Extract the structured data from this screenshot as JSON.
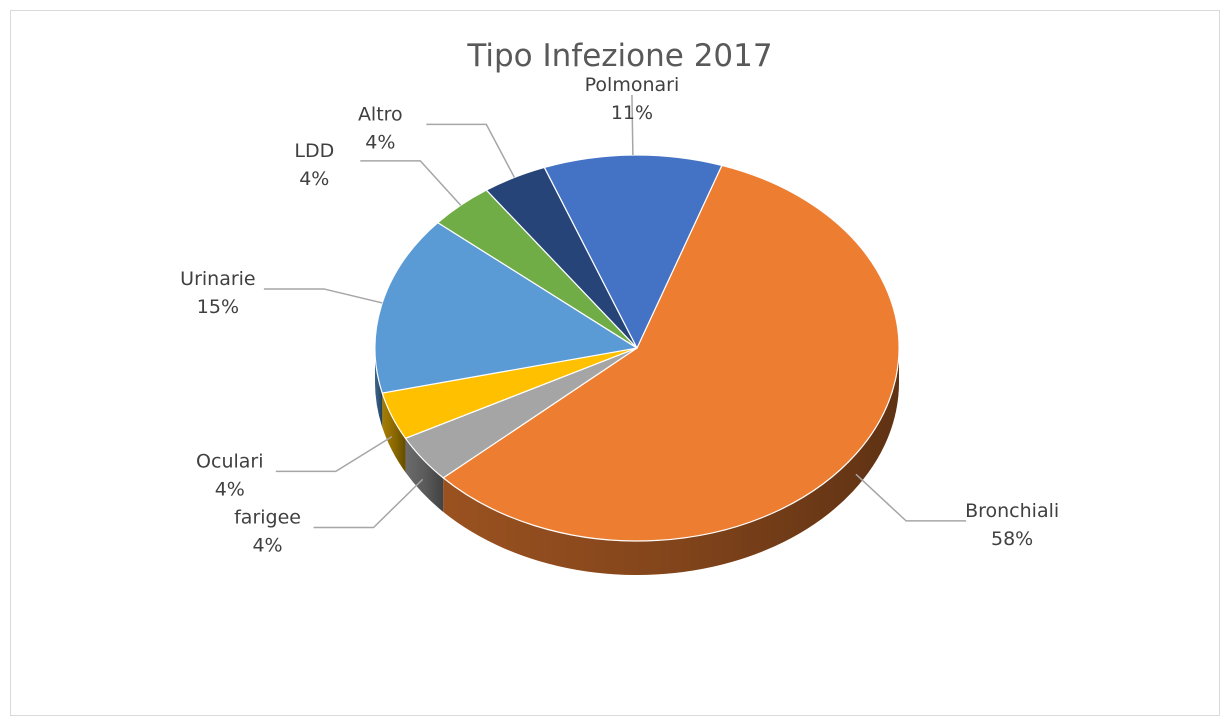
{
  "chart_data": {
    "type": "pie",
    "title": "Tipo Infezione 2017",
    "three_d": true,
    "categories": [
      "Bronchiali",
      "farigee",
      "Oculari",
      "Urinarie",
      "LDD",
      "Altro",
      "Polmonari"
    ],
    "values": [
      58,
      4,
      4,
      15,
      4,
      4,
      11
    ],
    "value_labels": [
      "58%",
      "4%",
      "4%",
      "15%",
      "4%",
      "4%",
      "11%"
    ],
    "colors": [
      "#ed7d31",
      "#a5a5a5",
      "#ffc000",
      "#5b9bd5",
      "#70ad47",
      "#264478",
      "#4472c4"
    ]
  }
}
